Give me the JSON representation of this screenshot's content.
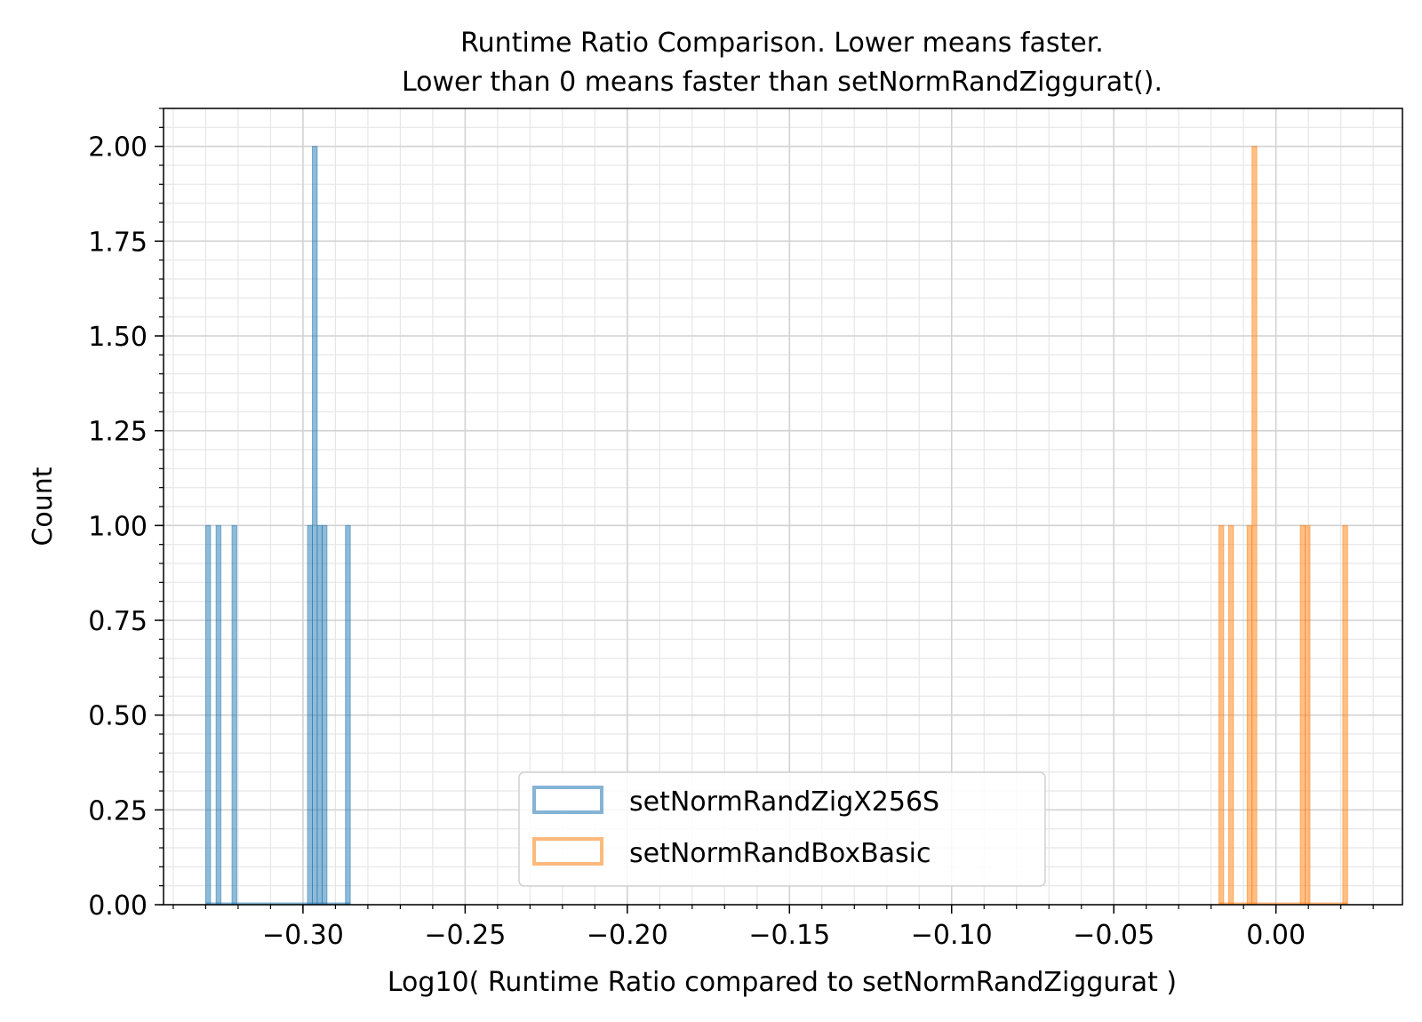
{
  "chart_data": {
    "type": "histogram-step",
    "title_lines": [
      "Runtime Ratio Comparison. Lower means faster.",
      "Lower than 0 means faster than setNormRandZiggurat()."
    ],
    "xlabel": "Log10( Runtime Ratio compared to setNormRandZiggurat )",
    "ylabel": "Count",
    "xlim": [
      -0.343,
      0.039
    ],
    "ylim": [
      0,
      2.1
    ],
    "x_ticks": [
      {
        "value": -0.3,
        "label": "−0.30"
      },
      {
        "value": -0.25,
        "label": "−0.25"
      },
      {
        "value": -0.2,
        "label": "−0.20"
      },
      {
        "value": -0.15,
        "label": "−0.15"
      },
      {
        "value": -0.1,
        "label": "−0.10"
      },
      {
        "value": -0.05,
        "label": "−0.05"
      },
      {
        "value": 0.0,
        "label": "0.00"
      }
    ],
    "y_ticks": [
      {
        "value": 0.0,
        "label": "0.00"
      },
      {
        "value": 0.25,
        "label": "0.25"
      },
      {
        "value": 0.5,
        "label": "0.50"
      },
      {
        "value": 0.75,
        "label": "0.75"
      },
      {
        "value": 1.0,
        "label": "1.00"
      },
      {
        "value": 1.25,
        "label": "1.25"
      },
      {
        "value": 1.5,
        "label": "1.50"
      },
      {
        "value": 1.75,
        "label": "1.75"
      },
      {
        "value": 2.0,
        "label": "2.00"
      }
    ],
    "grid": true,
    "minor_grid": true,
    "legend_position": "lower-center",
    "series": [
      {
        "name": "setNormRandZigX256S",
        "color": "#1f77b4",
        "bins": [
          {
            "x0": -0.33,
            "x1": -0.3285,
            "count": 1
          },
          {
            "x0": -0.3268,
            "x1": -0.3253,
            "count": 1
          },
          {
            "x0": -0.3219,
            "x1": -0.3204,
            "count": 1
          },
          {
            "x0": -0.2986,
            "x1": -0.2971,
            "count": 1
          },
          {
            "x0": -0.2971,
            "x1": -0.2956,
            "count": 2
          },
          {
            "x0": -0.2956,
            "x1": -0.2941,
            "count": 1
          },
          {
            "x0": -0.2941,
            "x1": -0.2926,
            "count": 1
          },
          {
            "x0": -0.2869,
            "x1": -0.2854,
            "count": 1
          }
        ],
        "range": [
          -0.33,
          -0.2854
        ]
      },
      {
        "name": "setNormRandBoxBasic",
        "color": "#ff7f0e",
        "bins": [
          {
            "x0": -0.0176,
            "x1": -0.0161,
            "count": 1
          },
          {
            "x0": -0.0146,
            "x1": -0.0131,
            "count": 1
          },
          {
            "x0": -0.0089,
            "x1": -0.0074,
            "count": 1
          },
          {
            "x0": -0.0074,
            "x1": -0.0059,
            "count": 2
          },
          {
            "x0": 0.0075,
            "x1": 0.009,
            "count": 1
          },
          {
            "x0": 0.009,
            "x1": 0.0105,
            "count": 1
          },
          {
            "x0": 0.0206,
            "x1": 0.0221,
            "count": 1
          }
        ],
        "range": [
          -0.0176,
          0.0221
        ]
      }
    ]
  }
}
